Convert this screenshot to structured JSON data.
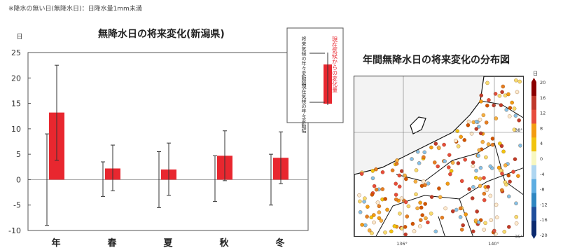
{
  "heading": "",
  "note": "※降水の無い日(無降水日)：日降水量1mm未満",
  "chart_data": [
    {
      "type": "bar",
      "title": "無降水日の将来変化(新潟県)",
      "ylabel": "日",
      "ylim": [
        -10,
        25
      ],
      "yticks": [
        -10,
        -5,
        0,
        5,
        10,
        15,
        20,
        25
      ],
      "categories": [
        "年",
        "春",
        "夏",
        "秋",
        "冬"
      ],
      "values": [
        13.2,
        2.2,
        2.0,
        4.7,
        4.3
      ],
      "current_range": [
        [
          -9,
          9
        ],
        [
          -3.3,
          3.5
        ],
        [
          -5.5,
          5.5
        ],
        [
          -4.3,
          4.7
        ],
        [
          -5,
          5
        ]
      ],
      "future_range": [
        [
          3.8,
          22.5
        ],
        [
          -2.2,
          6.8
        ],
        [
          -3.1,
          7.2
        ],
        [
          -0.2,
          9.6
        ],
        [
          -0.8,
          9.4
        ]
      ],
      "legend": {
        "future_label": "現在気候からの変化量",
        "future_error_label": "将来気候の年々変動幅",
        "current_error_label": "現在気候の年々変動幅"
      },
      "bar_color": "#e8272f"
    },
    {
      "type": "scatter",
      "title": "年間無降水日の将来変化の分布図",
      "colorbar_unit": "日",
      "colorbar_ticks": [
        20,
        16,
        12,
        8,
        4,
        0,
        -4,
        -8,
        -12,
        -16,
        -20
      ],
      "x_ticks": [
        "136°",
        "140°"
      ],
      "y_ticks": [
        "38°",
        "35°"
      ]
    }
  ]
}
